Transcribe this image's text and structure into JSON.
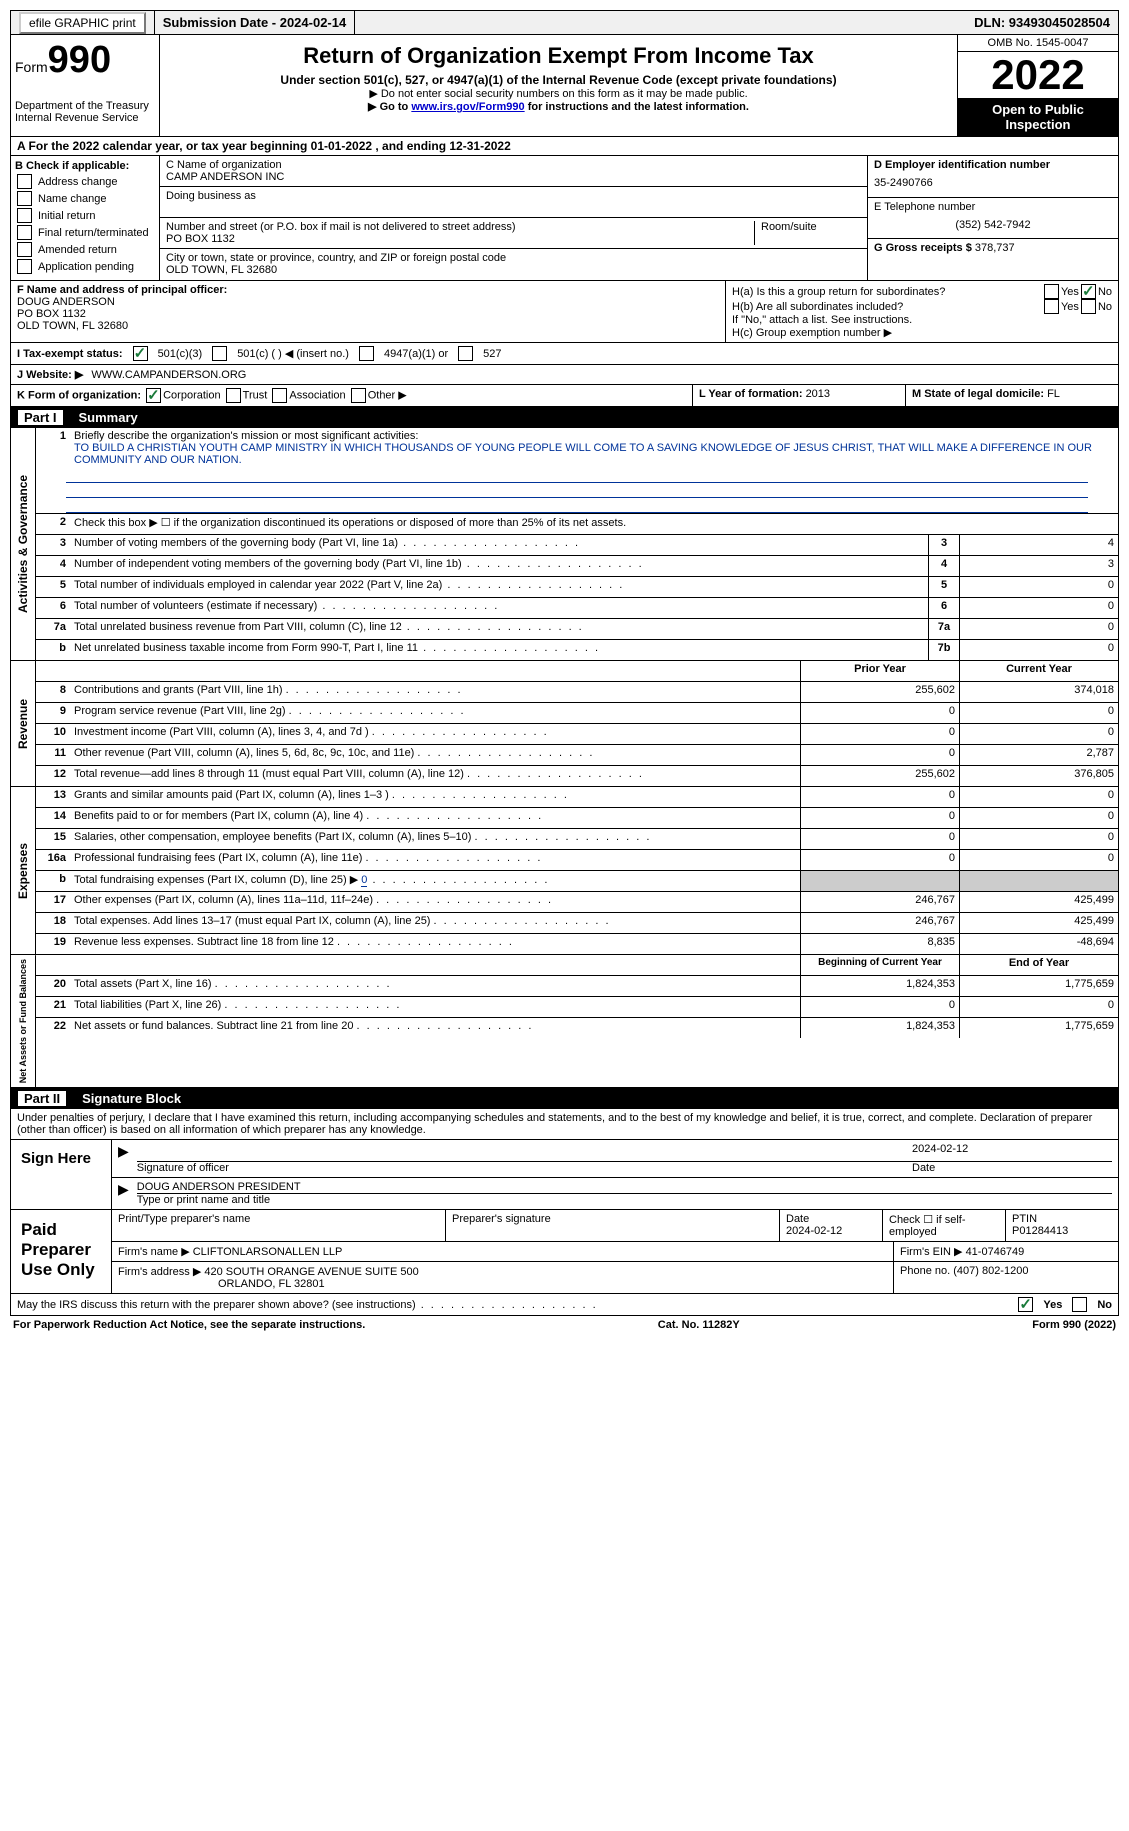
{
  "topbar": {
    "efile_label": "efile GRAPHIC print",
    "submission_label": "Submission Date - 2024-02-14",
    "dln_label": "DLN: 93493045028504"
  },
  "header": {
    "form_label": "Form",
    "form_num": "990",
    "dept": "Department of the Treasury Internal Revenue Service",
    "title": "Return of Organization Exempt From Income Tax",
    "subtitle": "Under section 501(c), 527, or 4947(a)(1) of the Internal Revenue Code (except private foundations)",
    "note1": "▶ Do not enter social security numbers on this form as it may be made public.",
    "note2_pre": "▶ Go to ",
    "note2_link": "www.irs.gov/Form990",
    "note2_post": " for instructions and the latest information.",
    "omb": "OMB No. 1545-0047",
    "year": "2022",
    "open": "Open to Public Inspection"
  },
  "period": "A For the 2022 calendar year, or tax year beginning 01-01-2022    , and ending 12-31-2022",
  "b": {
    "label": "B Check if applicable:",
    "items": [
      "Address change",
      "Name change",
      "Initial return",
      "Final return/terminated",
      "Amended return",
      "Application pending"
    ]
  },
  "c": {
    "name_label": "C Name of organization",
    "name": "CAMP ANDERSON INC",
    "dba_label": "Doing business as",
    "addr_label": "Number and street (or P.O. box if mail is not delivered to street address)",
    "room_label": "Room/suite",
    "addr": "PO BOX 1132",
    "city_label": "City or town, state or province, country, and ZIP or foreign postal code",
    "city": "OLD TOWN, FL  32680"
  },
  "d": {
    "ein_label": "D Employer identification number",
    "ein": "35-2490766",
    "phone_label": "E Telephone number",
    "phone": "(352) 542-7942",
    "gross_label": "G Gross receipts $ ",
    "gross": "378,737"
  },
  "f": {
    "label": "F Name and address of principal officer:",
    "name": "DOUG ANDERSON",
    "addr1": "PO BOX 1132",
    "addr2": "OLD TOWN, FL  32680"
  },
  "h": {
    "a_label": "H(a)  Is this a group return for subordinates?",
    "a_yes": "Yes",
    "a_no": "No",
    "b_label": "H(b)  Are all subordinates included?",
    "b_yes": "Yes",
    "b_no": "No",
    "b_note": "If \"No,\" attach a list. See instructions.",
    "c_label": "H(c)  Group exemption number ▶"
  },
  "i": {
    "label": "I   Tax-exempt status:",
    "o1": "501(c)(3)",
    "o2": "501(c) (   ) ◀ (insert no.)",
    "o3": "4947(a)(1) or",
    "o4": "527"
  },
  "j": {
    "label": "J   Website: ▶",
    "value": "WWW.CAMPANDERSON.ORG"
  },
  "k": {
    "label": "K Form of organization:",
    "o1": "Corporation",
    "o2": "Trust",
    "o3": "Association",
    "o4": "Other ▶"
  },
  "l": {
    "label": "L Year of formation: ",
    "val": "2013"
  },
  "m": {
    "label": "M State of legal domicile: ",
    "val": "FL"
  },
  "part1": {
    "num": "Part I",
    "title": "Summary"
  },
  "summary": {
    "mission_label": "Briefly describe the organization's mission or most significant activities:",
    "mission": "TO BUILD A CHRISTIAN YOUTH CAMP MINISTRY IN WHICH THOUSANDS OF YOUNG PEOPLE WILL COME TO A SAVING KNOWLEDGE OF JESUS CHRIST, THAT WILL MAKE A DIFFERENCE IN OUR COMMUNITY AND OUR NATION.",
    "line2": "Check this box ▶ ☐  if the organization discontinued its operations or disposed of more than 25% of its net assets.",
    "rows": [
      {
        "n": "3",
        "d": "Number of voting members of the governing body (Part VI, line 1a)",
        "b": "3",
        "v": "4"
      },
      {
        "n": "4",
        "d": "Number of independent voting members of the governing body (Part VI, line 1b)",
        "b": "4",
        "v": "3"
      },
      {
        "n": "5",
        "d": "Total number of individuals employed in calendar year 2022 (Part V, line 2a)",
        "b": "5",
        "v": "0"
      },
      {
        "n": "6",
        "d": "Total number of volunteers (estimate if necessary)",
        "b": "6",
        "v": "0"
      },
      {
        "n": "7a",
        "d": "Total unrelated business revenue from Part VIII, column (C), line 12",
        "b": "7a",
        "v": "0"
      },
      {
        "n": "b",
        "d": "Net unrelated business taxable income from Form 990-T, Part I, line 11",
        "b": "7b",
        "v": "0"
      }
    ],
    "prior_label": "Prior Year",
    "current_label": "Current Year",
    "revenue": [
      {
        "n": "8",
        "d": "Contributions and grants (Part VIII, line 1h)",
        "p": "255,602",
        "c": "374,018"
      },
      {
        "n": "9",
        "d": "Program service revenue (Part VIII, line 2g)",
        "p": "0",
        "c": "0"
      },
      {
        "n": "10",
        "d": "Investment income (Part VIII, column (A), lines 3, 4, and 7d )",
        "p": "0",
        "c": "0"
      },
      {
        "n": "11",
        "d": "Other revenue (Part VIII, column (A), lines 5, 6d, 8c, 9c, 10c, and 11e)",
        "p": "0",
        "c": "2,787"
      },
      {
        "n": "12",
        "d": "Total revenue—add lines 8 through 11 (must equal Part VIII, column (A), line 12)",
        "p": "255,602",
        "c": "376,805"
      }
    ],
    "expenses": [
      {
        "n": "13",
        "d": "Grants and similar amounts paid (Part IX, column (A), lines 1–3 )",
        "p": "0",
        "c": "0"
      },
      {
        "n": "14",
        "d": "Benefits paid to or for members (Part IX, column (A), line 4)",
        "p": "0",
        "c": "0"
      },
      {
        "n": "15",
        "d": "Salaries, other compensation, employee benefits (Part IX, column (A), lines 5–10)",
        "p": "0",
        "c": "0"
      },
      {
        "n": "16a",
        "d": "Professional fundraising fees (Part IX, column (A), line 11e)",
        "p": "0",
        "c": "0"
      },
      {
        "n": "b",
        "d": "Total fundraising expenses (Part IX, column (D), line 25) ▶",
        "p": "shade",
        "c": "shade",
        "extra": "0"
      },
      {
        "n": "17",
        "d": "Other expenses (Part IX, column (A), lines 11a–11d, 11f–24e)",
        "p": "246,767",
        "c": "425,499"
      },
      {
        "n": "18",
        "d": "Total expenses. Add lines 13–17 (must equal Part IX, column (A), line 25)",
        "p": "246,767",
        "c": "425,499"
      },
      {
        "n": "19",
        "d": "Revenue less expenses. Subtract line 18 from line 12",
        "p": "8,835",
        "c": "-48,694"
      }
    ],
    "beg_label": "Beginning of Current Year",
    "end_label": "End of Year",
    "netassets": [
      {
        "n": "20",
        "d": "Total assets (Part X, line 16)",
        "p": "1,824,353",
        "c": "1,775,659"
      },
      {
        "n": "21",
        "d": "Total liabilities (Part X, line 26)",
        "p": "0",
        "c": "0"
      },
      {
        "n": "22",
        "d": "Net assets or fund balances. Subtract line 21 from line 20",
        "p": "1,824,353",
        "c": "1,775,659"
      }
    ]
  },
  "sidelabels": {
    "gov": "Activities & Governance",
    "rev": "Revenue",
    "exp": "Expenses",
    "net": "Net Assets or Fund Balances"
  },
  "part2": {
    "num": "Part II",
    "title": "Signature Block"
  },
  "penalty": "Under penalties of perjury, I declare that I have examined this return, including accompanying schedules and statements, and to the best of my knowledge and belief, it is true, correct, and complete. Declaration of preparer (other than officer) is based on all information of which preparer has any knowledge.",
  "sign": {
    "label": "Sign Here",
    "sig_of_officer": "Signature of officer",
    "date": "2024-02-12",
    "date_label": "Date",
    "name": "DOUG ANDERSON  PRESIDENT",
    "name_label": "Type or print name and title"
  },
  "paid": {
    "label": "Paid Preparer Use Only",
    "prep_name_label": "Print/Type preparer's name",
    "prep_sig_label": "Preparer's signature",
    "prep_date_label": "Date",
    "prep_date": "2024-02-12",
    "self_label": "Check ☐ if self-employed",
    "ptin_label": "PTIN",
    "ptin": "P01284413",
    "firm_name_label": "Firm's name     ▶ ",
    "firm_name": "CLIFTONLARSONALLEN LLP",
    "firm_ein_label": "Firm's EIN ▶ ",
    "firm_ein": "41-0746749",
    "firm_addr_label": "Firm's address ▶ ",
    "firm_addr1": "420 SOUTH ORANGE AVENUE SUITE 500",
    "firm_addr2": "ORLANDO, FL  32801",
    "firm_phone_label": "Phone no. ",
    "firm_phone": "(407) 802-1200"
  },
  "discuss": {
    "q": "May the IRS discuss this return with the preparer shown above? (see instructions)",
    "yes": "Yes",
    "no": "No"
  },
  "footer": {
    "left": "For Paperwork Reduction Act Notice, see the separate instructions.",
    "mid": "Cat. No. 11282Y",
    "right": "Form 990 (2022)"
  }
}
